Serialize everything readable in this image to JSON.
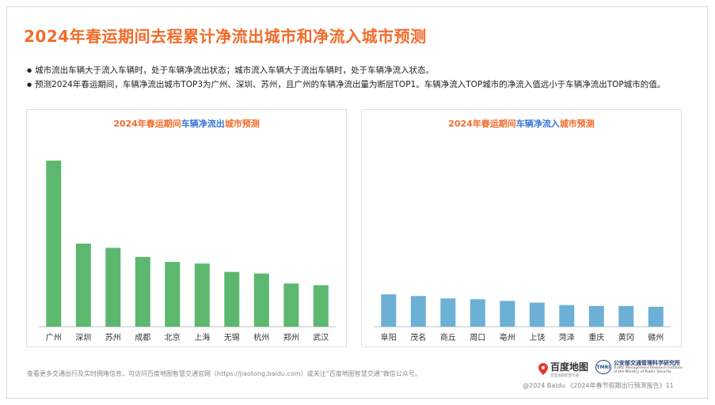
{
  "page": {
    "title": "2024年春运期间去程累计净流出城市和净流入城市预测",
    "bullets": [
      "城市流出车辆大于流入车辆时，处于车辆净流出状态；城市流入车辆大于流出车辆时，处于车辆净流入状态。",
      "预测2024年春运期间，车辆净流出城市TOP3为广州、深圳、苏州，且广州的车辆净流出量为断层TOP1。车辆净流入TOP城市的净流入值远小于车辆净流出TOP城市的值。"
    ],
    "footnote": "查看更多交通出行及实时拥堵信息，可访问百度地图智慧交通官网（https://jiaotong.baidu.com）或关注“百度地图智慧交通”微信公众号。",
    "footer_right": "@2024 Baidu 《2024年春节假期出行预测报告》11",
    "logo_baidu": "百度地图",
    "logo_baidu_sub": "百度地图智慧交通",
    "logo_tmri_badge": "TMRI",
    "logo_tmri_cn": "公安部交通管理科学研究所",
    "logo_tmri_en1": "Traffic Management Research Institute",
    "logo_tmri_en2": "of the Ministry of Public Security"
  },
  "colors": {
    "accent": "#f26b2a",
    "highlight": "#3a78d8",
    "outflow_bar": "#5cb86f",
    "inflow_bar": "#6cb0d6"
  },
  "chart_data": [
    {
      "type": "bar",
      "title_parts": [
        "2024年春运期间",
        "车辆净流出",
        "城市预测"
      ],
      "categories": [
        "广州",
        "深圳",
        "苏州",
        "成都",
        "北京",
        "上海",
        "无锡",
        "杭州",
        "郑州",
        "武汉"
      ],
      "values": [
        100,
        50,
        47.5,
        42,
        39,
        38,
        33,
        32,
        26,
        25
      ],
      "ylim": [
        0,
        100
      ],
      "xlabel": "",
      "ylabel": "",
      "grid": false,
      "note": "relative values estimated from bar heights; no axis labels shown"
    },
    {
      "type": "bar",
      "title_parts": [
        "2024年春运期间",
        "车辆净流入",
        "城市预测"
      ],
      "categories": [
        "阜阳",
        "茂名",
        "商丘",
        "周口",
        "亳州",
        "上饶",
        "菏泽",
        "重庆",
        "黄冈",
        "赣州"
      ],
      "values": [
        19.5,
        18.5,
        17,
        16.5,
        15.5,
        14.5,
        13,
        12.5,
        12.5,
        12
      ],
      "ylim": [
        0,
        100
      ],
      "xlabel": "",
      "ylabel": "",
      "grid": false,
      "note": "same scale as outflow chart; values estimated from bar heights"
    }
  ]
}
